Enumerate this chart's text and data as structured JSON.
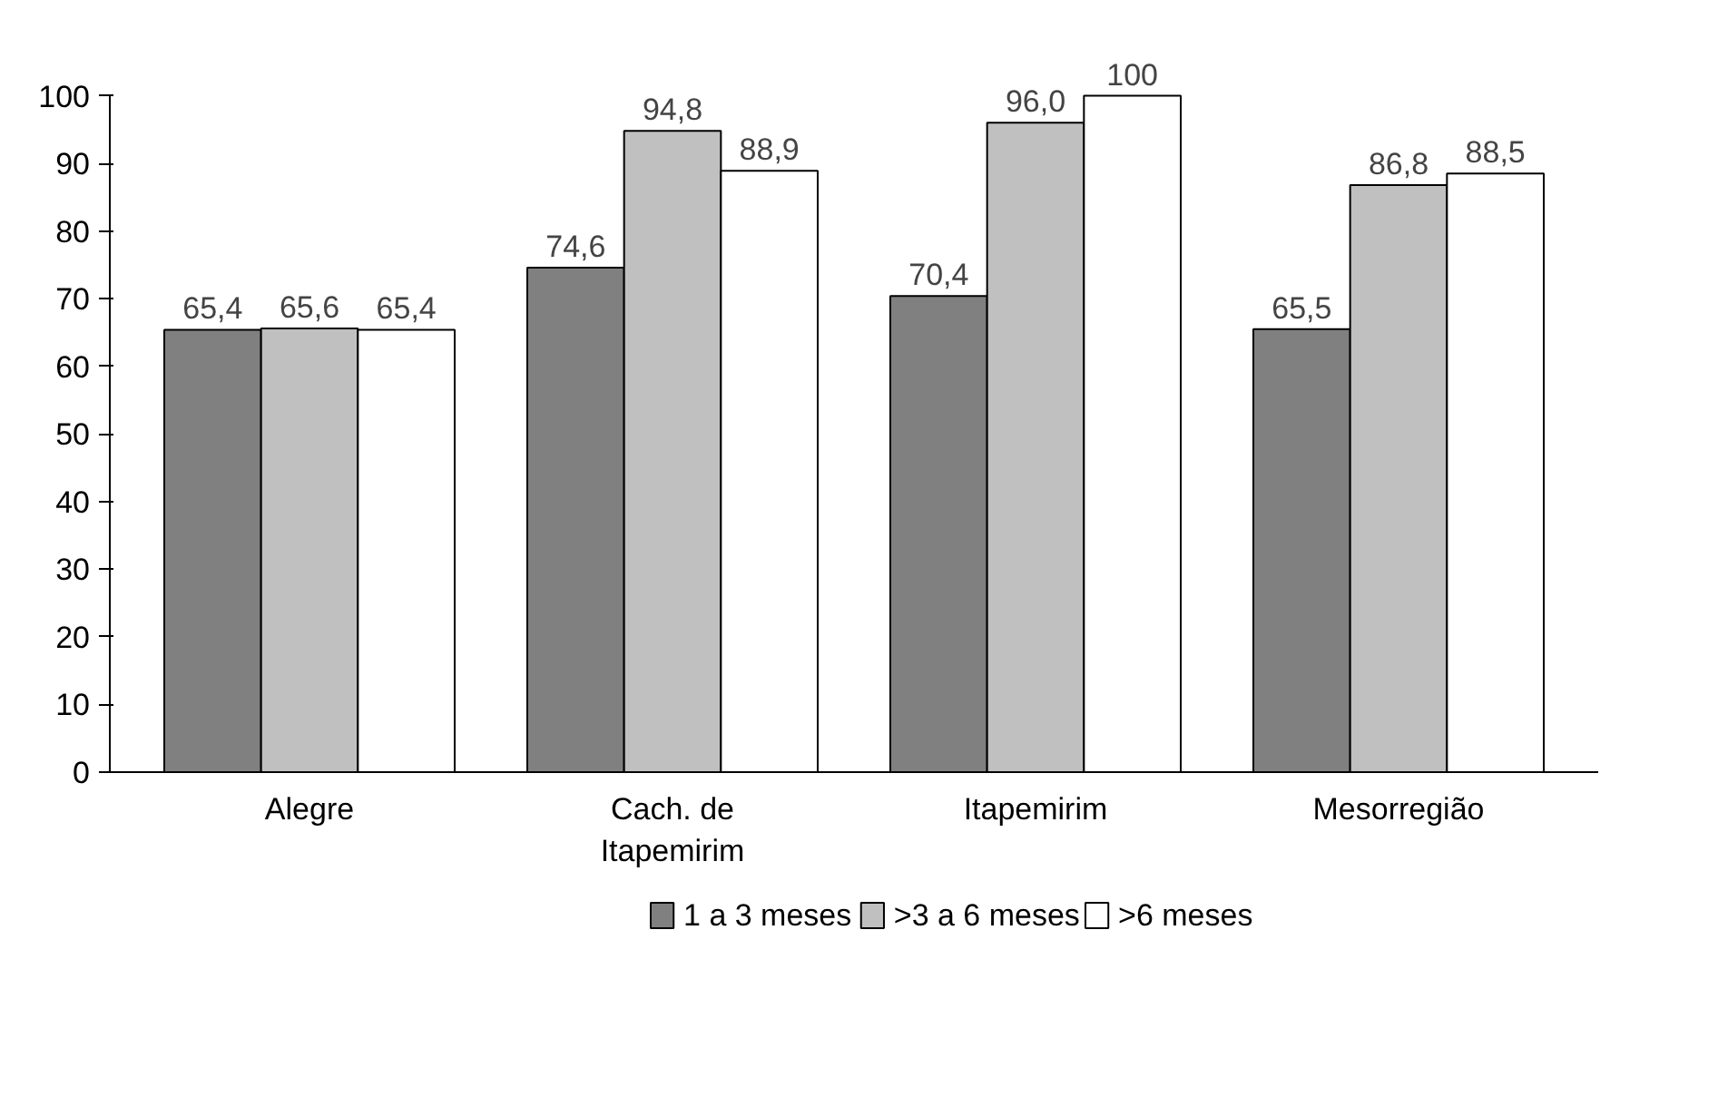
{
  "chart_data": {
    "type": "bar",
    "categories": [
      "Alegre",
      "Cach. de Itapemirim",
      "Itapemirim",
      "Mesorregião"
    ],
    "series": [
      {
        "name": "1 a 3 meses",
        "color": "#808080",
        "values": [
          65.4,
          74.6,
          70.4,
          65.5
        ],
        "value_labels": [
          "65,4",
          "74,6",
          "70,4",
          "65,5"
        ]
      },
      {
        "name": ">3 a 6 meses",
        "color": "#c0c0c0",
        "values": [
          65.6,
          94.8,
          96.0,
          86.8
        ],
        "value_labels": [
          "65,6",
          "94,8",
          "96,0",
          "86,8"
        ]
      },
      {
        "name": ">6 meses",
        "color": "#ffffff",
        "values": [
          65.4,
          88.9,
          100,
          88.5
        ],
        "value_labels": [
          "65,4",
          "88,9",
          "100",
          "88,5"
        ]
      }
    ],
    "ylim": [
      0,
      100
    ],
    "yticks": [
      0,
      10,
      20,
      30,
      40,
      50,
      60,
      70,
      80,
      90,
      100
    ],
    "grid": false,
    "legend": "bottom"
  }
}
